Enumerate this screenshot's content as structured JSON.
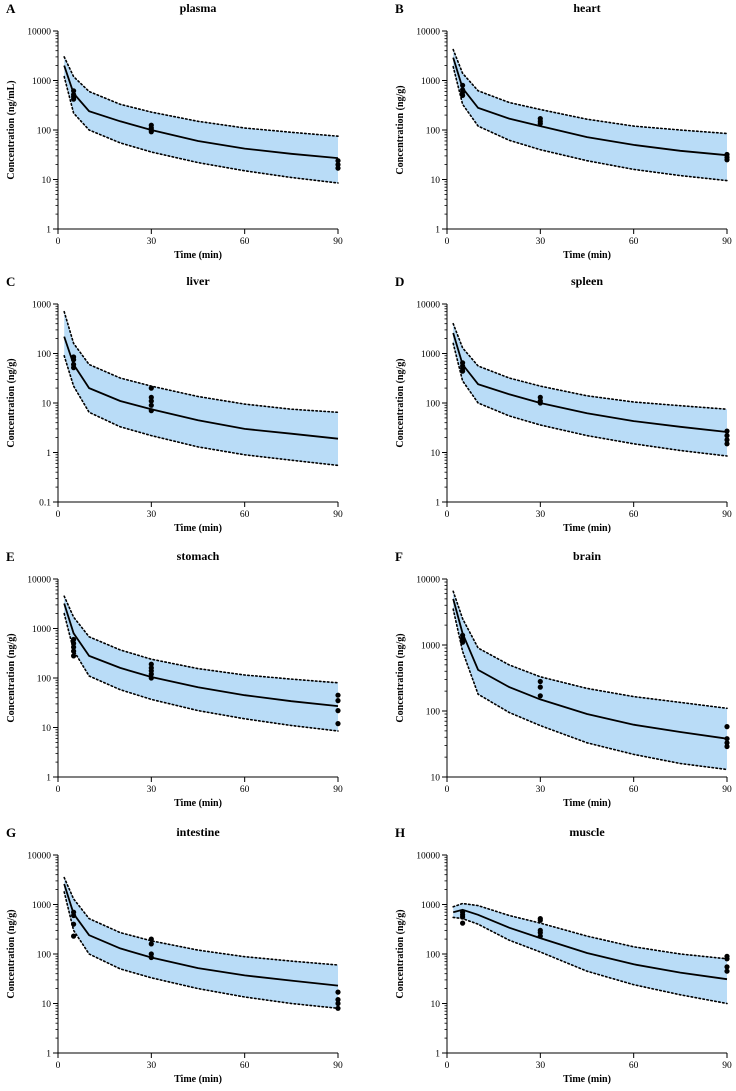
{
  "colors": {
    "band_fill": "#b9dcf7",
    "line": "#000000",
    "points": "#000000"
  },
  "chart_data": [
    {
      "letter": "A",
      "title": "plasma",
      "type": "line",
      "xlabel": "Time (min)",
      "ylabel": "Concentration (ng/mL)",
      "xlim": [
        0,
        90
      ],
      "xticks": [
        0,
        30,
        60,
        90
      ],
      "ylim": [
        1,
        10000
      ],
      "yscale": "log",
      "yticks": [
        1,
        10,
        100,
        1000,
        10000
      ],
      "ytick_labels": [
        "1",
        "10",
        "100",
        "1000",
        "10000"
      ],
      "series": [
        {
          "name": "median",
          "x": [
            2,
            5,
            10,
            20,
            30,
            45,
            60,
            75,
            90
          ],
          "y": [
            2000,
            550,
            240,
            150,
            100,
            60,
            42,
            33,
            27
          ]
        },
        {
          "name": "upper",
          "x": [
            2,
            5,
            10,
            20,
            30,
            45,
            60,
            75,
            90
          ],
          "y": [
            3000,
            1200,
            600,
            330,
            230,
            150,
            110,
            90,
            75
          ]
        },
        {
          "name": "lower",
          "x": [
            2,
            5,
            10,
            20,
            30,
            45,
            60,
            75,
            90
          ],
          "y": [
            1200,
            220,
            100,
            55,
            36,
            22,
            15,
            11,
            8.5
          ]
        }
      ],
      "observed": {
        "x": [
          5,
          5,
          5,
          5,
          30,
          30,
          30,
          30,
          90,
          90,
          90
        ],
        "y": [
          620,
          520,
          470,
          420,
          125,
          110,
          100,
          92,
          24,
          20,
          17
        ]
      }
    },
    {
      "letter": "B",
      "title": "heart",
      "type": "line",
      "xlabel": "Time (min)",
      "ylabel": "Concentration (ng/g)",
      "xlim": [
        0,
        90
      ],
      "xticks": [
        0,
        30,
        60,
        90
      ],
      "ylim": [
        1,
        10000
      ],
      "yscale": "log",
      "yticks": [
        1,
        10,
        100,
        1000,
        10000
      ],
      "ytick_labels": [
        "1",
        "10",
        "100",
        "1000",
        "10000"
      ],
      "series": [
        {
          "name": "median",
          "x": [
            2,
            5,
            10,
            20,
            30,
            45,
            60,
            75,
            90
          ],
          "y": [
            2900,
            700,
            280,
            170,
            120,
            72,
            50,
            38,
            31
          ]
        },
        {
          "name": "upper",
          "x": [
            2,
            5,
            10,
            20,
            30,
            45,
            60,
            75,
            90
          ],
          "y": [
            4200,
            1400,
            620,
            360,
            260,
            165,
            120,
            100,
            85
          ]
        },
        {
          "name": "lower",
          "x": [
            2,
            5,
            10,
            20,
            30,
            45,
            60,
            75,
            90
          ],
          "y": [
            1900,
            330,
            120,
            62,
            40,
            24,
            16,
            12,
            9.5
          ]
        }
      ],
      "observed": {
        "x": [
          5,
          5,
          5,
          5,
          30,
          30,
          30,
          90,
          90,
          90
        ],
        "y": [
          800,
          650,
          580,
          500,
          170,
          150,
          135,
          32,
          28,
          25
        ]
      }
    },
    {
      "letter": "C",
      "title": "liver",
      "type": "line",
      "xlabel": "Time (min)",
      "ylabel": "Concentration (ng/g)",
      "xlim": [
        0,
        90
      ],
      "xticks": [
        0,
        30,
        60,
        90
      ],
      "ylim": [
        0.1,
        1000
      ],
      "yscale": "log",
      "yticks": [
        0.1,
        1,
        10,
        100,
        1000
      ],
      "ytick_labels": [
        "0.1",
        "1",
        "10",
        "100",
        "1000"
      ],
      "series": [
        {
          "name": "median",
          "x": [
            2,
            5,
            10,
            20,
            30,
            45,
            60,
            75,
            90
          ],
          "y": [
            220,
            60,
            20,
            11,
            7.5,
            4.5,
            3.0,
            2.4,
            1.9
          ]
        },
        {
          "name": "upper",
          "x": [
            2,
            5,
            10,
            20,
            30,
            45,
            60,
            75,
            90
          ],
          "y": [
            700,
            160,
            60,
            32,
            22,
            13.5,
            9.5,
            7.5,
            6.5
          ]
        },
        {
          "name": "lower",
          "x": [
            2,
            5,
            10,
            20,
            30,
            45,
            60,
            75,
            90
          ],
          "y": [
            90,
            22,
            6.5,
            3.3,
            2.2,
            1.3,
            0.9,
            0.7,
            0.55
          ]
        }
      ],
      "observed": {
        "x": [
          5,
          5,
          5,
          5,
          30,
          30,
          30,
          30,
          30
        ],
        "y": [
          85,
          75,
          60,
          52,
          20,
          13,
          11,
          9,
          7
        ]
      }
    },
    {
      "letter": "D",
      "title": "spleen",
      "type": "line",
      "xlabel": "Time (min)",
      "ylabel": "Concentration (ng/g)",
      "xlim": [
        0,
        90
      ],
      "xticks": [
        0,
        30,
        60,
        90
      ],
      "ylim": [
        1,
        10000
      ],
      "yscale": "log",
      "yticks": [
        1,
        10,
        100,
        1000,
        10000
      ],
      "ytick_labels": [
        "1",
        "10",
        "100",
        "1000",
        "10000"
      ],
      "series": [
        {
          "name": "median",
          "x": [
            2,
            5,
            10,
            20,
            30,
            45,
            60,
            75,
            90
          ],
          "y": [
            2600,
            600,
            240,
            150,
            100,
            62,
            43,
            33,
            26
          ]
        },
        {
          "name": "upper",
          "x": [
            2,
            5,
            10,
            20,
            30,
            45,
            60,
            75,
            90
          ],
          "y": [
            4000,
            1300,
            560,
            320,
            220,
            140,
            105,
            88,
            75
          ]
        },
        {
          "name": "lower",
          "x": [
            2,
            5,
            10,
            20,
            30,
            45,
            60,
            75,
            90
          ],
          "y": [
            1600,
            280,
            100,
            55,
            36,
            22,
            15,
            11,
            8.5
          ]
        }
      ],
      "observed": {
        "x": [
          5,
          5,
          5,
          5,
          30,
          30,
          30,
          90,
          90,
          90,
          90
        ],
        "y": [
          650,
          560,
          500,
          440,
          130,
          110,
          100,
          27,
          22,
          18,
          15
        ]
      }
    },
    {
      "letter": "E",
      "title": "stomach",
      "type": "line",
      "xlabel": "Time (min)",
      "ylabel": "Concentration (ng/g)",
      "xlim": [
        0,
        90
      ],
      "xticks": [
        0,
        30,
        60,
        90
      ],
      "ylim": [
        1,
        10000
      ],
      "yscale": "log",
      "yticks": [
        1,
        10,
        100,
        1000,
        10000
      ],
      "ytick_labels": [
        "1",
        "10",
        "100",
        "1000",
        "10000"
      ],
      "series": [
        {
          "name": "median",
          "x": [
            2,
            5,
            10,
            20,
            30,
            45,
            60,
            75,
            90
          ],
          "y": [
            3200,
            800,
            280,
            160,
            105,
            65,
            45,
            34,
            27
          ]
        },
        {
          "name": "upper",
          "x": [
            2,
            5,
            10,
            20,
            30,
            45,
            60,
            75,
            90
          ],
          "y": [
            4500,
            1700,
            680,
            370,
            240,
            155,
            115,
            95,
            80
          ]
        },
        {
          "name": "lower",
          "x": [
            2,
            5,
            10,
            20,
            30,
            45,
            60,
            75,
            90
          ],
          "y": [
            2000,
            360,
            110,
            58,
            37,
            22,
            15,
            11,
            8.5
          ]
        }
      ],
      "observed": {
        "x": [
          5,
          5,
          5,
          5,
          5,
          30,
          30,
          30,
          30,
          30,
          90,
          90,
          90,
          90
        ],
        "y": [
          600,
          500,
          420,
          350,
          280,
          190,
          160,
          140,
          120,
          100,
          45,
          35,
          22,
          12
        ]
      }
    },
    {
      "letter": "F",
      "title": "brain",
      "type": "line",
      "xlabel": "Time (min)",
      "ylabel": "Concentration (ng/g)",
      "xlim": [
        0,
        90
      ],
      "xticks": [
        0,
        30,
        60,
        90
      ],
      "ylim": [
        10,
        10000
      ],
      "yscale": "log",
      "yticks": [
        10,
        100,
        1000,
        10000
      ],
      "ytick_labels": [
        "10",
        "100",
        "1000",
        "10000"
      ],
      "series": [
        {
          "name": "median",
          "x": [
            2,
            5,
            10,
            20,
            30,
            45,
            60,
            75,
            90
          ],
          "y": [
            5000,
            1500,
            420,
            230,
            150,
            90,
            62,
            48,
            38
          ]
        },
        {
          "name": "upper",
          "x": [
            2,
            5,
            10,
            20,
            30,
            45,
            60,
            75,
            90
          ],
          "y": [
            6500,
            2500,
            900,
            500,
            330,
            220,
            165,
            135,
            110
          ]
        },
        {
          "name": "lower",
          "x": [
            2,
            5,
            10,
            20,
            30,
            45,
            60,
            75,
            90
          ],
          "y": [
            3500,
            800,
            180,
            95,
            60,
            33,
            22,
            16,
            13
          ]
        }
      ],
      "observed": {
        "x": [
          5,
          5,
          5,
          5,
          30,
          30,
          30,
          90,
          90,
          90,
          90
        ],
        "y": [
          1400,
          1250,
          1150,
          1100,
          280,
          230,
          170,
          58,
          38,
          33,
          29
        ]
      }
    },
    {
      "letter": "G",
      "title": "intestine",
      "type": "line",
      "xlabel": "Time (min)",
      "ylabel": "Concentration (ng/g)",
      "xlim": [
        0,
        90
      ],
      "xticks": [
        0,
        30,
        60,
        90
      ],
      "ylim": [
        1,
        10000
      ],
      "yscale": "log",
      "yticks": [
        1,
        10,
        100,
        1000,
        10000
      ],
      "ytick_labels": [
        "1",
        "10",
        "100",
        "1000",
        "10000"
      ],
      "series": [
        {
          "name": "median",
          "x": [
            2,
            5,
            10,
            20,
            30,
            45,
            60,
            75,
            90
          ],
          "y": [
            2600,
            650,
            240,
            130,
            85,
            52,
            37,
            29,
            23
          ]
        },
        {
          "name": "upper",
          "x": [
            2,
            5,
            10,
            20,
            30,
            45,
            60,
            75,
            90
          ],
          "y": [
            3500,
            1300,
            520,
            270,
            185,
            120,
            88,
            72,
            60
          ]
        },
        {
          "name": "lower",
          "x": [
            2,
            5,
            10,
            20,
            30,
            45,
            60,
            75,
            90
          ],
          "y": [
            1800,
            300,
            100,
            50,
            33,
            20,
            13.5,
            10,
            8
          ]
        }
      ],
      "observed": {
        "x": [
          5,
          5,
          5,
          5,
          30,
          30,
          30,
          30,
          90,
          90,
          90,
          90
        ],
        "y": [
          700,
          600,
          400,
          230,
          200,
          160,
          100,
          85,
          17,
          12,
          10,
          8
        ]
      }
    },
    {
      "letter": "H",
      "title": "muscle",
      "type": "line",
      "xlabel": "Time (min)",
      "ylabel": "Concentration (ng/g)",
      "xlim": [
        0,
        90
      ],
      "xticks": [
        0,
        30,
        60,
        90
      ],
      "ylim": [
        1,
        10000
      ],
      "yscale": "log",
      "yticks": [
        1,
        10,
        100,
        1000,
        10000
      ],
      "ytick_labels": [
        "1",
        "10",
        "100",
        "1000",
        "10000"
      ],
      "series": [
        {
          "name": "median",
          "x": [
            2,
            5,
            10,
            20,
            30,
            45,
            60,
            75,
            90
          ],
          "y": [
            700,
            780,
            620,
            340,
            210,
            105,
            62,
            42,
            31
          ]
        },
        {
          "name": "upper",
          "x": [
            2,
            5,
            10,
            20,
            30,
            45,
            60,
            75,
            90
          ],
          "y": [
            900,
            1050,
            950,
            600,
            420,
            230,
            140,
            100,
            80
          ]
        },
        {
          "name": "lower",
          "x": [
            2,
            5,
            10,
            20,
            30,
            45,
            60,
            75,
            90
          ],
          "y": [
            550,
            520,
            400,
            190,
            110,
            45,
            24,
            15,
            10
          ]
        }
      ],
      "observed": {
        "x": [
          5,
          5,
          5,
          5,
          30,
          30,
          30,
          30,
          30,
          90,
          90,
          90,
          90
        ],
        "y": [
          700,
          620,
          560,
          420,
          520,
          480,
          300,
          270,
          230,
          90,
          80,
          55,
          45
        ]
      }
    }
  ]
}
